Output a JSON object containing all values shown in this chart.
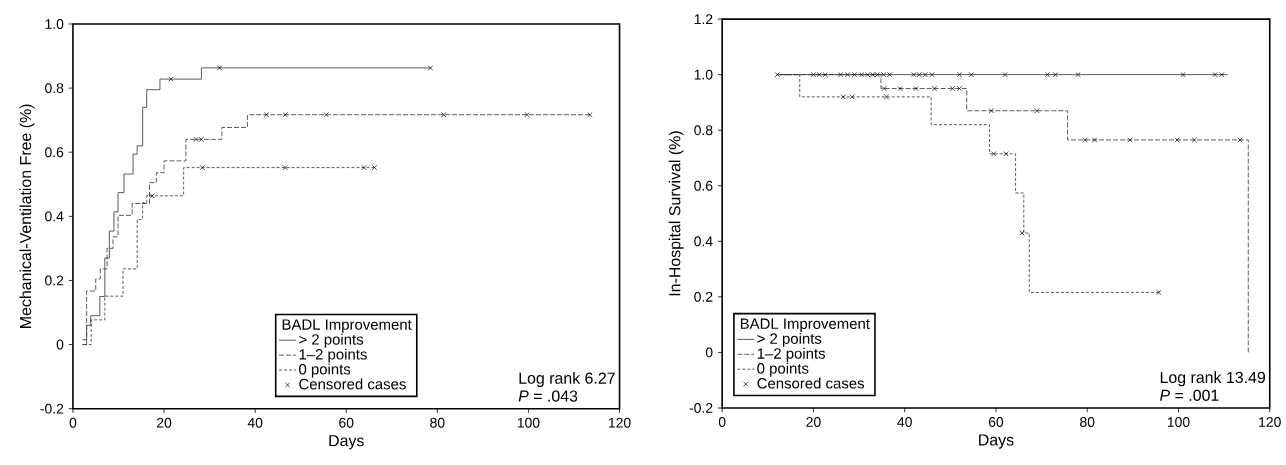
{
  "chart_data": [
    {
      "type": "step",
      "xlabel": "Days",
      "ylabel": "Mechanical-Ventilation Free (%)",
      "legend_title": "BADL Improvement",
      "legend": "bottom",
      "xlim": [
        0,
        120
      ],
      "xticks": [
        0,
        20,
        40,
        60,
        80,
        100,
        120
      ],
      "ylim": [
        -0.2,
        1.0
      ],
      "yticks": [
        -0.2,
        0,
        0.2,
        0.4,
        0.6,
        0.8,
        {
          "value": 1.0,
          "label": "1.0"
        }
      ],
      "annotations": [
        "Log rank 6.27",
        "*P* = .043"
      ],
      "series": [
        {
          "name": "> 2 points",
          "color": "#333333",
          "line_style": "solid",
          "x": [
            2,
            3,
            3.9,
            5.9,
            7,
            8,
            9,
            9.9,
            11.2,
            13.2,
            14.1,
            15.3,
            16.2,
            19.1,
            28.2,
            78.5
          ],
          "values": [
            0,
            0.06,
            0.09,
            0.15,
            0.27,
            0.354,
            0.414,
            0.474,
            0.532,
            0.594,
            0.62,
            0.74,
            0.795,
            0.828,
            0.863,
            0.863
          ]
        },
        {
          "name": "1–2 points",
          "color": "#333333",
          "line_style": "dashed",
          "x": [
            2,
            3,
            5,
            6,
            7.5,
            8.8,
            9.9,
            13,
            16.8,
            18.3,
            20,
            24.8,
            32.7,
            38.3,
            113.5
          ],
          "values": [
            0.015,
            0.167,
            0.205,
            0.236,
            0.3,
            0.336,
            0.403,
            0.44,
            0.505,
            0.536,
            0.573,
            0.64,
            0.677,
            0.717,
            0.717
          ]
        },
        {
          "name": "0 points",
          "color": "#333333",
          "line_style": "dotted",
          "x": [
            2,
            4,
            7,
            11,
            14.1,
            15.3,
            16.2,
            24.3,
            66.2
          ],
          "values": [
            0,
            0.077,
            0.151,
            0.236,
            0.39,
            0.443,
            0.464,
            0.552,
            0.552
          ]
        },
        {
          "name": "Censored cases",
          "type": "scatter",
          "marker": "cross",
          "color": "#000000",
          "x": [
            21.5,
            32.2,
            78.5,
            27,
            28.2,
            42.5,
            46.6,
            55.6,
            81.4,
            99.7,
            113.5,
            17.4,
            28.4,
            46.6,
            63.9,
            66.2
          ],
          "values": [
            0.828,
            0.863,
            0.863,
            0.64,
            0.64,
            0.717,
            0.717,
            0.717,
            0.717,
            0.717,
            0.717,
            0.464,
            0.552,
            0.552,
            0.552,
            0.552
          ]
        }
      ]
    },
    {
      "type": "step",
      "xlabel": "Days",
      "ylabel": "In-Hospital Survival (%)",
      "legend_title": "BADL Improvement",
      "legend": "bottom left",
      "xlim": [
        0,
        120
      ],
      "xticks": [
        0,
        20,
        40,
        60,
        80,
        100,
        120
      ],
      "ylim": [
        -0.2,
        1.2
      ],
      "yticks": [
        -0.2,
        0,
        0.2,
        0.4,
        0.6,
        0.8,
        {
          "value": 1.0,
          "label": "1.0"
        },
        1.2
      ],
      "annotations": [
        "Log rank 13.49",
        "*P* = .001"
      ],
      "series": [
        {
          "name": "> 2 points",
          "color": "#333333",
          "line_style": "solid",
          "x": [
            12,
            110.8
          ],
          "values": [
            1.0,
            1.0
          ]
        },
        {
          "name": "1–2 points",
          "color": "#333333",
          "line_style": "dashed",
          "x": [
            12,
            34.8,
            53.6,
            75.7,
            115.3
          ],
          "values": [
            1.0,
            0.95,
            0.87,
            0.765,
            0
          ]
        },
        {
          "name": "0 points",
          "color": "#333333",
          "line_style": "dotted",
          "x": [
            12,
            17,
            45.8,
            58.6,
            64.3,
            66.1,
            67.3,
            95.7
          ],
          "values": [
            1.0,
            0.92,
            0.82,
            0.715,
            0.574,
            0.43,
            0.216,
            0.216
          ]
        },
        {
          "name": "Censored cases",
          "type": "scatter",
          "marker": "cross",
          "color": "#000000",
          "x": [
            12.1,
            20,
            21.3,
            22.6,
            26,
            27.5,
            29,
            30.6,
            31.9,
            33,
            34,
            35.4,
            36.7,
            42,
            43.2,
            44.5,
            46,
            52,
            54.6,
            62,
            71.3,
            73,
            78,
            101,
            108,
            109.5,
            35.5,
            39,
            42.5,
            46.5,
            50.5,
            52,
            59,
            69,
            79.5,
            81.6,
            89.4,
            99.7,
            103.5,
            113.5,
            26.5,
            28.5,
            36,
            59.5,
            62.2,
            65.7,
            95.7
          ],
          "values": [
            1,
            1,
            1,
            1,
            1,
            1,
            1,
            1,
            1,
            1,
            1,
            1,
            1,
            1,
            1,
            1,
            1,
            1,
            1,
            1,
            1,
            1,
            1,
            1,
            1,
            1,
            0.95,
            0.95,
            0.95,
            0.95,
            0.95,
            0.95,
            0.87,
            0.87,
            0.765,
            0.765,
            0.765,
            0.765,
            0.765,
            0.765,
            0.92,
            0.92,
            0.92,
            0.715,
            0.715,
            0.43,
            0.216
          ]
        }
      ]
    }
  ]
}
